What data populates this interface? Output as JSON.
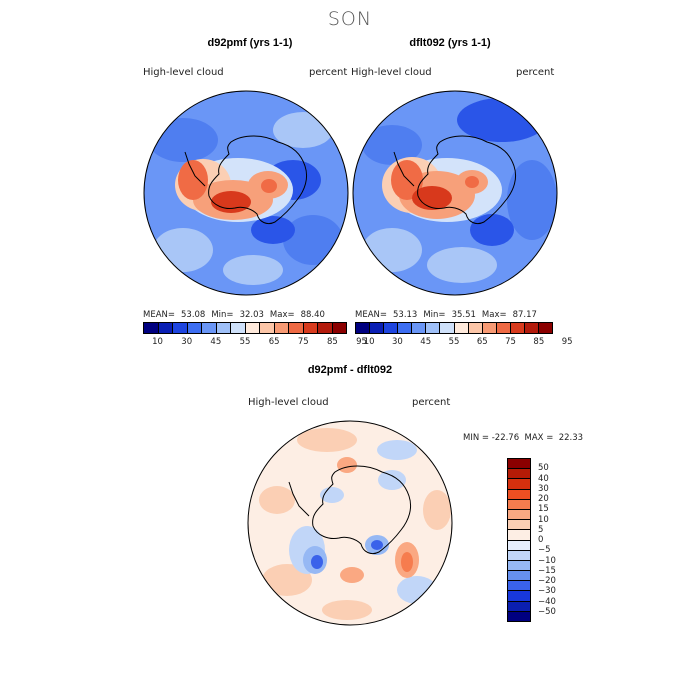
{
  "season": "SON",
  "panels": [
    {
      "title": "d92pmf (yrs 1-1)",
      "variable": "High-level cloud",
      "units": "percent",
      "stats": {
        "mean_label": "MEAN=",
        "mean": "53.08",
        "min_label": "Min=",
        "min": "32.03",
        "max_label": "Max=",
        "max": "88.40"
      }
    },
    {
      "title": "dflt092 (yrs 1-1)",
      "variable": "High-level cloud",
      "units": "percent",
      "stats": {
        "mean_label": "MEAN=",
        "mean": "53.13",
        "min_label": "Min=",
        "min": "35.51",
        "max_label": "Max=",
        "max": "87.17"
      }
    }
  ],
  "diff_panel": {
    "title": "d92pmf - dflt092",
    "variable": "High-level cloud",
    "units": "percent",
    "minmax": "MIN = -22.76  MAX =  22.33"
  },
  "colorbars": {
    "abs": {
      "colors": [
        "#000080",
        "#0a1fb4",
        "#1e45e0",
        "#3d6ef2",
        "#6a96f6",
        "#9fc0f8",
        "#cfe1fa",
        "#ffeadc",
        "#fcc6a8",
        "#f79a74",
        "#ee6a44",
        "#d83b1e",
        "#b31b0c",
        "#8b0000"
      ],
      "tick_labels": [
        "10",
        "30",
        "45",
        "55",
        "65",
        "75",
        "85",
        "95"
      ]
    },
    "diff": {
      "colors_top_to_bottom": [
        "#8b0000",
        "#b51b06",
        "#d6300e",
        "#ed4f22",
        "#f67c4e",
        "#faa882",
        "#fbcfb4",
        "#fdeee4",
        "#e6eefc",
        "#c1d6f8",
        "#96b8f4",
        "#6690ef",
        "#3a62ea",
        "#1838dc",
        "#0b1fb0",
        "#000080"
      ],
      "tick_labels": [
        "50",
        "40",
        "30",
        "20",
        "15",
        "10",
        "5",
        "0",
        "−5",
        "−10",
        "−15",
        "−20",
        "−30",
        "−40",
        "−50"
      ]
    }
  },
  "map_colors": {
    "blue_dark": "#2a55e8",
    "blue": "#4f7ef0",
    "blue_mid": "#7ea6f4",
    "blue_light": "#a9c6f7",
    "pale_blue": "#d3e3fa",
    "cream": "#fdeee4",
    "peach": "#fbcfb4",
    "salmon": "#f7a07a",
    "orange": "#f06b45",
    "red": "#d8391c",
    "dark_red": "#b51b06"
  }
}
